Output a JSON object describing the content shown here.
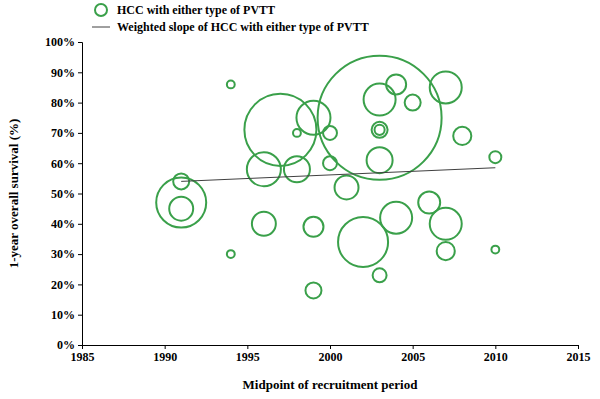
{
  "chart_data": {
    "type": "scatter",
    "x_label": "Midpoint of recruitment period",
    "y_label": "1-year overall survival (%)",
    "xlim": [
      1985,
      2015
    ],
    "xticks": [
      1985,
      1990,
      1995,
      2000,
      2005,
      2010,
      2015
    ],
    "ylim": [
      0,
      100
    ],
    "yticks": [
      {
        "value": 0,
        "label": "0%"
      },
      {
        "value": 10,
        "label": "10%"
      },
      {
        "value": 20,
        "label": "20%"
      },
      {
        "value": 30,
        "label": "30%"
      },
      {
        "value": 40,
        "label": "40%"
      },
      {
        "value": 50,
        "label": "50%"
      },
      {
        "value": 60,
        "label": "60%"
      },
      {
        "value": 70,
        "label": "70%"
      },
      {
        "value": 80,
        "label": "80%"
      },
      {
        "value": 90,
        "label": "90%"
      },
      {
        "value": 100,
        "label": "100%"
      }
    ],
    "legend": "top-left",
    "series": [
      {
        "name": "HCC with either type of PVTT",
        "type": "bubble",
        "color": "#3aa04a",
        "marker": "circle",
        "x": [
          1991,
          1991,
          1991,
          1994,
          1994,
          1996,
          1996,
          1997,
          1998,
          1998,
          1999,
          1999,
          1999,
          2000,
          2000,
          2001,
          2002,
          2003,
          2003,
          2003,
          2003,
          2003,
          2003,
          2004,
          2004,
          2005,
          2006,
          2007,
          2007,
          2007,
          2008,
          2010,
          2010
        ],
        "values": [
          54,
          45,
          47,
          86,
          30,
          40,
          58,
          71,
          58,
          70,
          75,
          39,
          18,
          60,
          70,
          52,
          34,
          75,
          81,
          71,
          71,
          61,
          23,
          86,
          42,
          80,
          47,
          85,
          40,
          31,
          69,
          62,
          31.5
        ],
        "sizes": [
          25,
          56,
          244,
          6,
          6,
          56,
          113,
          506,
          66,
          6,
          113,
          39,
          25,
          19,
          19,
          56,
          244,
          1500,
          100,
          25,
          10,
          66,
          19,
          39,
          100,
          25,
          47,
          100,
          100,
          32,
          32,
          14,
          6
        ]
      },
      {
        "name": "Weighted slope of HCC with either type of PVTT",
        "type": "line",
        "color": "#404040",
        "line_style": "solid",
        "x": [
          1991,
          2010
        ],
        "values": [
          54,
          58.5
        ]
      }
    ]
  }
}
